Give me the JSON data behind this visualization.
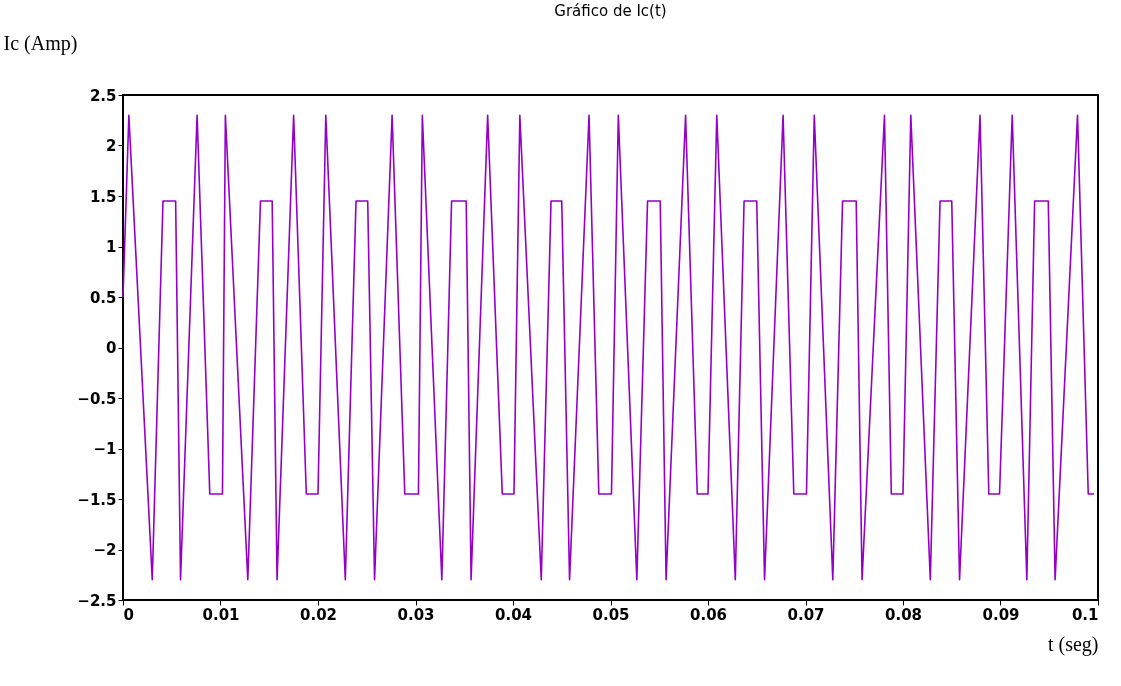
{
  "chart_data": {
    "type": "line",
    "title": "Gráfico de Ic(t)",
    "xlabel": "t (seg)",
    "ylabel": "Ic (Amp)",
    "x": [
      0,
      0.0006,
      0.003,
      0.0041,
      0.0054,
      0.0059,
      0.0076,
      0.0089,
      0.0102,
      0.0105,
      0.0128,
      0.0141,
      0.0153,
      0.0158,
      0.0175,
      0.0188,
      0.02,
      0.0208,
      0.0228,
      0.0239,
      0.0251,
      0.0258,
      0.0276,
      0.0289,
      0.0303,
      0.0307,
      0.0327,
      0.0337,
      0.0352,
      0.0357,
      0.0374,
      0.0389,
      0.0401,
      0.0407,
      0.0429,
      0.0439,
      0.045,
      0.0458,
      0.0478,
      0.0488,
      0.0501,
      0.0508,
      0.0527,
      0.0538,
      0.0551,
      0.0557,
      0.0577,
      0.0589,
      0.06,
      0.0609,
      0.0628,
      0.0637,
      0.065,
      0.0658,
      0.0677,
      0.0688,
      0.0701,
      0.0709,
      0.0728,
      0.0738,
      0.0752,
      0.0758,
      0.0781,
      0.0788,
      0.08,
      0.0808,
      0.0828,
      0.0838,
      0.085,
      0.0858,
      0.0879,
      0.0888,
      0.0899,
      0.0912,
      0.0927,
      0.0935,
      0.0949,
      0.0956,
      0.0979,
      0.099,
      0.0996
    ],
    "series": [
      {
        "color": "#9400c8",
        "values": [
          0.5,
          2.3,
          -2.3,
          1.45,
          1.45,
          -2.3,
          2.3,
          -1.45,
          -1.45,
          2.3,
          -2.3,
          1.45,
          1.45,
          -2.3,
          2.3,
          -1.45,
          -1.45,
          2.3,
          -2.3,
          1.45,
          1.45,
          -2.3,
          2.3,
          -1.45,
          -1.45,
          2.3,
          -2.3,
          1.45,
          1.45,
          -2.3,
          2.3,
          -1.45,
          -1.45,
          2.3,
          -2.3,
          1.45,
          1.45,
          -2.3,
          2.3,
          -1.45,
          -1.45,
          2.3,
          -2.3,
          1.45,
          1.45,
          -2.3,
          2.3,
          -1.45,
          -1.45,
          2.3,
          -2.3,
          1.45,
          1.45,
          -2.3,
          2.3,
          -1.45,
          -1.45,
          2.3,
          -2.3,
          1.45,
          1.45,
          -2.3,
          2.3,
          -1.45,
          -1.45,
          2.3,
          -2.3,
          1.45,
          1.45,
          -2.3,
          2.3,
          -1.45,
          -1.45,
          2.3,
          -2.3,
          1.45,
          1.45,
          -2.3,
          2.3,
          -1.45,
          -1.45
        ]
      }
    ],
    "xlim": [
      0,
      0.1
    ],
    "xticks": [
      0,
      0.01,
      0.02,
      0.03,
      0.04,
      0.05,
      0.06,
      0.07,
      0.08,
      0.09,
      0.1
    ],
    "ylim": [
      -2.5,
      2.5
    ],
    "yticks": [
      -2.5,
      -2,
      -1.5,
      -1,
      -0.5,
      0,
      0.5,
      1,
      1.5,
      2,
      2.5
    ]
  }
}
